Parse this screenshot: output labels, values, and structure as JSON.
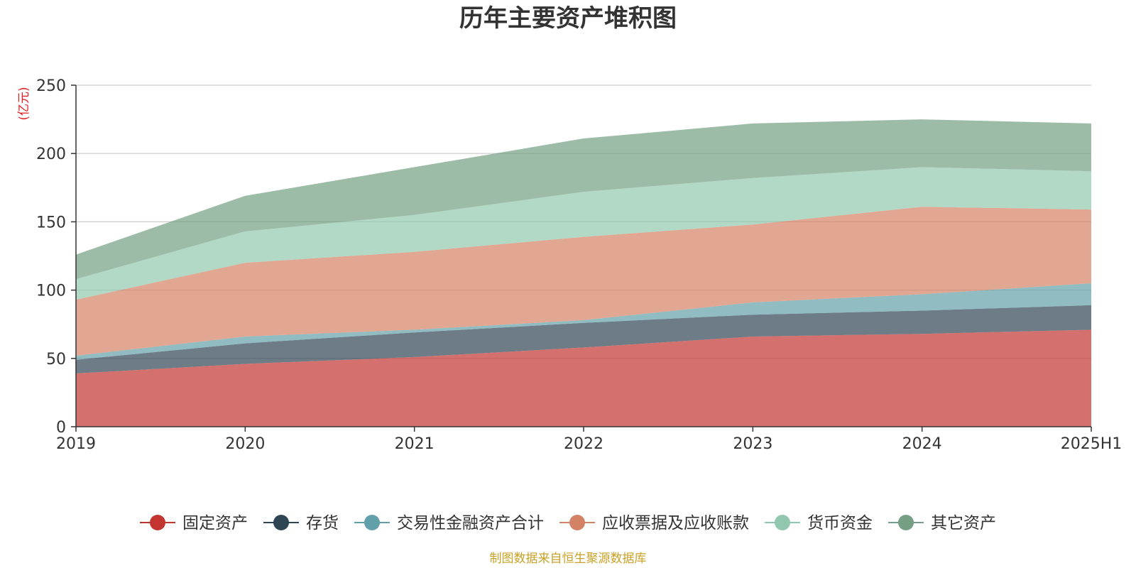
{
  "chart_data": {
    "type": "area",
    "stacked": true,
    "title": "历年主要资产堆积图",
    "y_unit": "(亿元)",
    "source_note": "制图数据来自恒生聚源数据库",
    "categories": [
      "2019",
      "2020",
      "2021",
      "2022",
      "2023",
      "2024",
      "2025H1"
    ],
    "ylim": [
      0,
      250
    ],
    "yticks": [
      0,
      50,
      100,
      150,
      200,
      250
    ],
    "grid": true,
    "legend_position": "bottom",
    "series": [
      {
        "name": "固定资产",
        "color": "#c23531",
        "values": [
          39,
          46,
          51,
          58,
          66,
          68,
          71
        ]
      },
      {
        "name": "存货",
        "color": "#2f4554",
        "values": [
          10,
          15,
          18,
          18,
          16,
          17,
          18
        ]
      },
      {
        "name": "交易性金融资产合计",
        "color": "#61a0a8",
        "values": [
          3,
          5,
          2,
          2,
          9,
          12,
          16
        ]
      },
      {
        "name": "应收票据及应收账款",
        "color": "#d48265",
        "values": [
          41,
          54,
          57,
          61,
          57,
          64,
          54
        ]
      },
      {
        "name": "货币资金",
        "color": "#91c7ae",
        "values": [
          15,
          23,
          27,
          33,
          34,
          29,
          28
        ]
      },
      {
        "name": "其它资产",
        "color": "#749f83",
        "values": [
          18,
          26,
          35,
          39,
          40,
          35,
          35
        ]
      }
    ]
  }
}
